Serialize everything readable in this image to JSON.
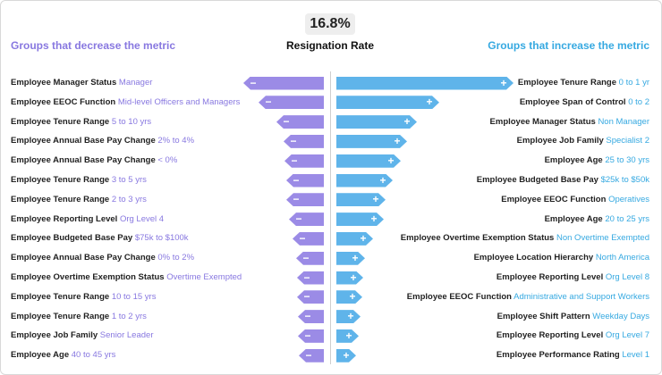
{
  "metric_value": "16.8%",
  "headers": {
    "left": "Groups that decrease the metric",
    "center": "Resignation Rate",
    "right": "Groups that increase the metric"
  },
  "colors": {
    "decrease": "#9b8be6",
    "increase": "#5fb4ea"
  },
  "chart_data": {
    "type": "bar",
    "title": "Resignation Rate",
    "orientation": "diverging-horizontal",
    "value_unit": "relative impact (estimated, arbitrary units)",
    "decrease": [
      {
        "name": "Employee Manager Status",
        "group": "Manager",
        "impact": 90,
        "sign": "−"
      },
      {
        "name": "Employee EEOC Function",
        "group": "Mid-level Officers and Managers",
        "impact": 73,
        "sign": "−"
      },
      {
        "name": "Employee Tenure Range",
        "group": "5 to 10 yrs",
        "impact": 53,
        "sign": "−"
      },
      {
        "name": "Employee Annual Base Pay Change",
        "group": "2% to 4%",
        "impact": 45,
        "sign": "−"
      },
      {
        "name": "Employee Annual Base Pay Change",
        "group": "< 0%",
        "impact": 44,
        "sign": "−"
      },
      {
        "name": "Employee Tenure Range",
        "group": "3 to 5 yrs",
        "impact": 42,
        "sign": "−"
      },
      {
        "name": "Employee Tenure Range",
        "group": "2 to 3 yrs",
        "impact": 42,
        "sign": "−"
      },
      {
        "name": "Employee Reporting Level",
        "group": "Org Level 4",
        "impact": 39,
        "sign": "−"
      },
      {
        "name": "Employee Budgeted Base Pay",
        "group": "$75k to $100k",
        "impact": 35,
        "sign": "−"
      },
      {
        "name": "Employee Annual Base Pay Change",
        "group": "0% to 2%",
        "impact": 31,
        "sign": "−"
      },
      {
        "name": "Employee Overtime Exemption Status",
        "group": "Overtime Exempted",
        "impact": 30,
        "sign": "−"
      },
      {
        "name": "Employee Tenure Range",
        "group": "10 to 15 yrs",
        "impact": 30,
        "sign": "−"
      },
      {
        "name": "Employee Tenure Range",
        "group": "1 to 2 yrs",
        "impact": 29,
        "sign": "−"
      },
      {
        "name": "Employee Job Family",
        "group": "Senior Leader",
        "impact": 29,
        "sign": "−"
      },
      {
        "name": "Employee Age",
        "group": "40 to 45 yrs",
        "impact": 28,
        "sign": "−"
      }
    ],
    "increase": [
      {
        "name": "Employee Tenure Range",
        "group": "0 to 1 yr",
        "impact": 198,
        "sign": "+"
      },
      {
        "name": "Employee Span of Control",
        "group": "0 to 2",
        "impact": 115,
        "sign": "+"
      },
      {
        "name": "Employee Manager Status",
        "group": "Non Manager",
        "impact": 90,
        "sign": "+"
      },
      {
        "name": "Employee Job Family",
        "group": "Specialist 2",
        "impact": 79,
        "sign": "+"
      },
      {
        "name": "Employee Age",
        "group": "25 to 30 yrs",
        "impact": 72,
        "sign": "+"
      },
      {
        "name": "Employee Budgeted Base Pay",
        "group": "$25k to $50k",
        "impact": 63,
        "sign": "+"
      },
      {
        "name": "Employee EEOC Function",
        "group": "Operatives",
        "impact": 55,
        "sign": "+"
      },
      {
        "name": "Employee Age",
        "group": "20 to 25 yrs",
        "impact": 53,
        "sign": "+"
      },
      {
        "name": "Employee Overtime Exemption Status",
        "group": "Non Overtime Exempted",
        "impact": 41,
        "sign": "+"
      },
      {
        "name": "Employee Location Hierarchy",
        "group": "North America",
        "impact": 32,
        "sign": "+"
      },
      {
        "name": "Employee Reporting Level",
        "group": "Org Level 8",
        "impact": 30,
        "sign": "+"
      },
      {
        "name": "Employee EEOC Function",
        "group": "Administrative and Support Workers",
        "impact": 29,
        "sign": "+"
      },
      {
        "name": "Employee Shift Pattern",
        "group": "Weekday Days",
        "impact": 27,
        "sign": "+"
      },
      {
        "name": "Employee Reporting Level",
        "group": "Org Level 7",
        "impact": 25,
        "sign": "+"
      },
      {
        "name": "Employee Performance Rating",
        "group": "Level 1",
        "impact": 22,
        "sign": "+"
      }
    ]
  }
}
